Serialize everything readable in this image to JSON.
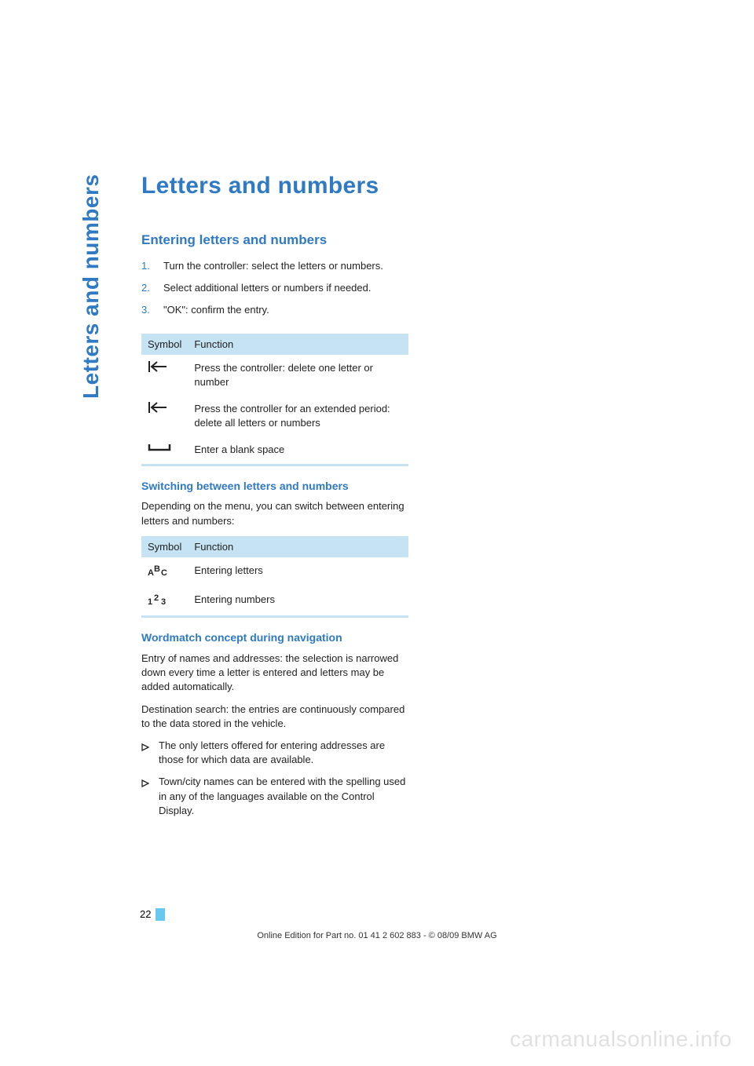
{
  "colors": {
    "accent": "#2f7ac3",
    "table_header_bg": "#c6e3f3",
    "page_num_bar": "#68c8ef",
    "text": "#222222",
    "watermark": "rgba(0,0,0,0.12)"
  },
  "side_tab": "Letters and numbers",
  "title": "Letters and numbers",
  "section1": {
    "heading": "Entering letters and numbers",
    "steps": [
      {
        "num": "1.",
        "text": "Turn the controller: select the letters or numbers."
      },
      {
        "num": "2.",
        "text": "Select additional letters or numbers if needed."
      },
      {
        "num": "3.",
        "text": "\"OK\": confirm the entry."
      }
    ]
  },
  "table1": {
    "header": {
      "col1": "Symbol",
      "col2": "Function"
    },
    "rows": [
      {
        "symbol": "back-arrow",
        "text": "Press the controller: delete one letter or number"
      },
      {
        "symbol": "back-arrow",
        "text": "Press the controller for an extended period: delete all letters or numbers"
      },
      {
        "symbol": "space",
        "text": "Enter a blank space"
      }
    ]
  },
  "section2": {
    "heading": "Switching between letters and numbers",
    "para": "Depending on the menu, you can switch between entering letters and numbers:"
  },
  "table2": {
    "header": {
      "col1": "Symbol",
      "col2": "Function"
    },
    "rows": [
      {
        "symbol": "abc",
        "text": "Entering letters"
      },
      {
        "symbol": "123",
        "text": "Entering numbers"
      }
    ]
  },
  "section3": {
    "heading": "Wordmatch concept during navigation",
    "para1": "Entry of names and addresses: the selection is narrowed down every time a letter is entered and letters may be added automatically.",
    "para2": "Destination search: the entries are continuously compared to the data stored in the vehicle.",
    "bullets": [
      "The only letters offered for entering addresses are those for which data are available.",
      "Town/city names can be entered with the spelling used in any of the languages available on the Control Display."
    ]
  },
  "page_number": "22",
  "footer": "Online Edition for Part no. 01 41 2 602 883 - © 08/09 BMW AG",
  "watermark": "carmanualsonline.info"
}
